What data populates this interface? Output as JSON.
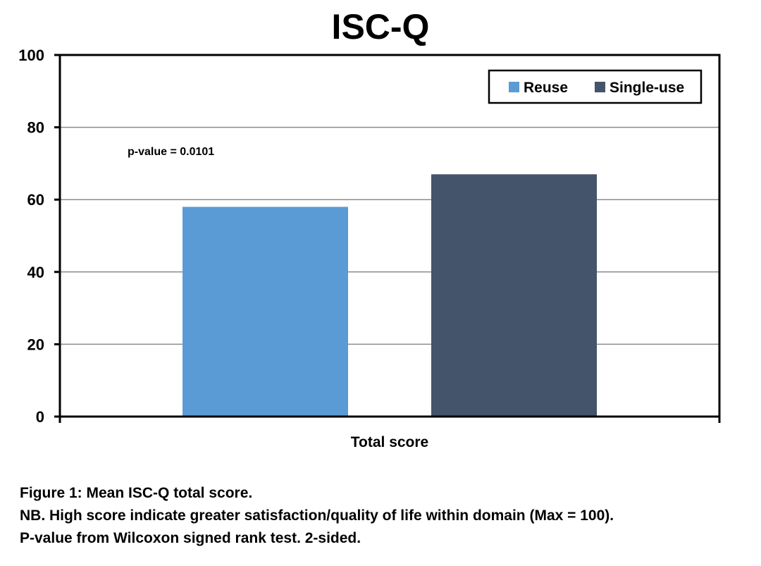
{
  "chart_data": {
    "type": "bar",
    "title": "ISC-Q",
    "categories": [
      "Total score"
    ],
    "series": [
      {
        "name": "Reuse",
        "values": [
          58
        ]
      },
      {
        "name": "Single-use",
        "values": [
          67
        ]
      }
    ],
    "ylim": [
      0,
      100
    ],
    "yticks": [
      0,
      20,
      40,
      60,
      80,
      100
    ],
    "xlabel": "",
    "ylabel": "",
    "grid": true,
    "legend_position": "top-right",
    "annotation": "p-value = 0.0101",
    "colors": {
      "Reuse": "#5b9bd5",
      "Single-use": "#44546a",
      "grid": "#8c8c8c",
      "axis": "#000000"
    }
  },
  "caption": {
    "line1": "Figure 1: Mean ISC-Q total score.",
    "line2": "NB. High score indicate greater satisfaction/quality of life within domain (Max = 100).",
    "line3": "P-value from Wilcoxon signed rank test. 2-sided."
  }
}
